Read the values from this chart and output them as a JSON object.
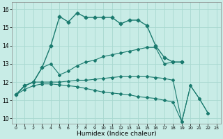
{
  "xlabel": "Humidex (Indice chaleur)",
  "bg_color": "#c8ece6",
  "grid_color": "#a8d8d0",
  "line_color": "#1a7a6e",
  "xlim_min": -0.5,
  "xlim_max": 23.5,
  "ylim_min": 9.7,
  "ylim_max": 16.4,
  "xticks": [
    0,
    1,
    2,
    3,
    4,
    5,
    6,
    7,
    8,
    9,
    10,
    11,
    12,
    13,
    14,
    15,
    16,
    17,
    18,
    19,
    20,
    21,
    22,
    23
  ],
  "yticks": [
    10,
    11,
    12,
    13,
    14,
    15,
    16
  ],
  "series": [
    {
      "x": [
        0,
        1,
        2,
        3,
        4,
        5,
        6,
        7,
        8,
        9,
        10,
        11,
        12,
        13,
        14,
        15,
        16,
        17,
        18,
        19
      ],
      "y": [
        11.3,
        11.8,
        12.0,
        12.8,
        14.0,
        15.6,
        15.3,
        15.8,
        15.55,
        15.55,
        15.55,
        15.55,
        15.2,
        15.4,
        15.4,
        15.1,
        14.0,
        13.35,
        13.1,
        13.1
      ]
    },
    {
      "x": [
        0,
        1,
        2,
        3,
        4,
        5,
        6,
        7,
        8,
        9,
        10,
        11,
        12,
        13,
        14,
        15,
        16,
        17,
        18,
        19
      ],
      "y": [
        11.3,
        11.8,
        12.0,
        12.8,
        13.0,
        12.4,
        12.6,
        12.9,
        13.1,
        13.2,
        13.4,
        13.5,
        13.6,
        13.7,
        13.8,
        13.9,
        13.9,
        13.0,
        13.1,
        13.1
      ]
    },
    {
      "x": [
        0,
        1,
        2,
        3,
        4,
        5,
        6,
        7,
        8,
        9,
        10,
        11,
        12,
        13,
        14,
        15,
        16,
        17,
        18,
        19,
        20,
        21,
        22
      ],
      "y": [
        11.3,
        11.8,
        12.0,
        12.0,
        12.0,
        12.0,
        12.05,
        12.1,
        12.1,
        12.15,
        12.2,
        12.25,
        12.3,
        12.3,
        12.3,
        12.3,
        12.25,
        12.2,
        12.1,
        9.82,
        11.8,
        11.1,
        10.3
      ]
    },
    {
      "x": [
        0,
        1,
        2,
        3,
        4,
        5,
        6,
        7,
        8,
        9,
        10,
        11,
        12,
        13,
        14,
        15,
        16,
        17,
        18,
        19,
        20,
        21,
        22
      ],
      "y": [
        11.3,
        11.6,
        11.8,
        11.9,
        11.9,
        11.85,
        11.8,
        11.75,
        11.65,
        11.55,
        11.45,
        11.4,
        11.35,
        11.3,
        11.2,
        11.15,
        11.1,
        11.0,
        10.9,
        9.82,
        11.8,
        11.1,
        10.3
      ]
    }
  ]
}
